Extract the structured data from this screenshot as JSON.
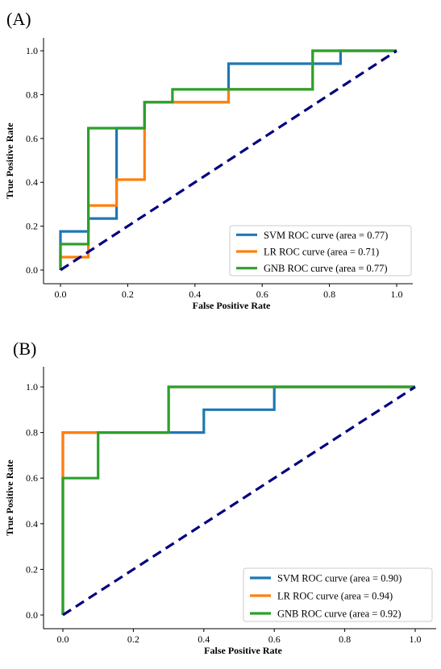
{
  "chart_data": [
    {
      "type": "line",
      "panel_label": "(A)",
      "xlabel": "False Positive Rate",
      "ylabel": "True Positive Rate",
      "xlim": [
        0,
        1
      ],
      "ylim": [
        0,
        1
      ],
      "xticks": [
        "0.0",
        "0.2",
        "0.4",
        "0.6",
        "0.8",
        "1.0"
      ],
      "yticks": [
        "0.0",
        "0.2",
        "0.4",
        "0.6",
        "0.8",
        "1.0"
      ],
      "grid": false,
      "legend_position": "lower-right",
      "diagonal": {
        "x": [
          0,
          1
        ],
        "y": [
          0,
          1
        ],
        "style": "dashed",
        "color": "#000080"
      },
      "series": [
        {
          "name": "SVM ROC curve (area = 0.77)",
          "color": "#1f77b4",
          "x": [
            0,
            0,
            0.083,
            0.083,
            0.167,
            0.167,
            0.25,
            0.25,
            0.5,
            0.5,
            0.833,
            0.833,
            1.0
          ],
          "y": [
            0,
            0.176,
            0.176,
            0.235,
            0.235,
            0.647,
            0.647,
            0.765,
            0.765,
            0.941,
            0.941,
            1.0,
            1.0
          ]
        },
        {
          "name": "LR ROC curve (area = 0.71)",
          "color": "#ff7f0e",
          "x": [
            0,
            0,
            0.083,
            0.083,
            0.167,
            0.167,
            0.25,
            0.25,
            0.5,
            0.5,
            0.75,
            0.75,
            1.0
          ],
          "y": [
            0,
            0.059,
            0.059,
            0.294,
            0.294,
            0.412,
            0.412,
            0.765,
            0.765,
            0.824,
            0.824,
            1.0,
            1.0
          ]
        },
        {
          "name": "GNB ROC curve (area = 0.77)",
          "color": "#2ca02c",
          "x": [
            0,
            0,
            0.083,
            0.083,
            0.25,
            0.25,
            0.333,
            0.333,
            0.75,
            0.75,
            1.0
          ],
          "y": [
            0,
            0.118,
            0.118,
            0.647,
            0.647,
            0.765,
            0.765,
            0.824,
            0.824,
            1.0,
            1.0
          ]
        }
      ]
    },
    {
      "type": "line",
      "panel_label": "(B)",
      "xlabel": "False Positive Rate",
      "ylabel": "True Positive Rate",
      "xlim": [
        0,
        1
      ],
      "ylim": [
        0,
        1
      ],
      "xticks": [
        "0.0",
        "0.2",
        "0.4",
        "0.6",
        "0.8",
        "1.0"
      ],
      "yticks": [
        "0.0",
        "0.2",
        "0.4",
        "0.6",
        "0.8",
        "1.0"
      ],
      "grid": false,
      "legend_position": "lower-right",
      "diagonal": {
        "x": [
          0,
          1
        ],
        "y": [
          0,
          1
        ],
        "style": "dashed",
        "color": "#000080"
      },
      "series": [
        {
          "name": "SVM ROC curve (area = 0.90)",
          "color": "#1f77b4",
          "x": [
            0,
            0,
            0.1,
            0.1,
            0.4,
            0.4,
            0.6,
            0.6,
            1.0
          ],
          "y": [
            0,
            0.8,
            0.8,
            0.8,
            0.8,
            0.9,
            0.9,
            1.0,
            1.0
          ]
        },
        {
          "name": "LR ROC curve (area = 0.94)",
          "color": "#ff7f0e",
          "x": [
            0,
            0,
            0.1,
            0.1,
            0.3,
            0.3,
            1.0
          ],
          "y": [
            0,
            0.8,
            0.8,
            0.8,
            0.8,
            1.0,
            1.0
          ]
        },
        {
          "name": "GNB ROC curve (area = 0.92)",
          "color": "#2ca02c",
          "x": [
            0,
            0,
            0.1,
            0.1,
            0.3,
            0.3,
            1.0
          ],
          "y": [
            0,
            0.6,
            0.6,
            0.8,
            0.8,
            1.0,
            1.0
          ]
        }
      ]
    }
  ]
}
